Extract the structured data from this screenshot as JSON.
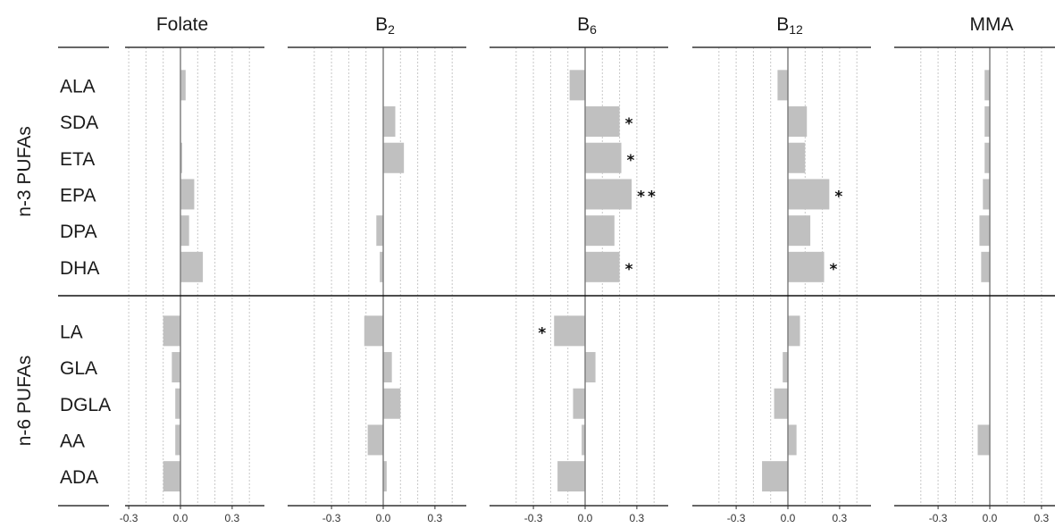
{
  "chart_data": {
    "type": "bar",
    "orientation": "horizontal",
    "grid": true,
    "bar_color": "#c0c0c0",
    "gridline_color": "#c8c8c8",
    "zero_line_color": "#808080",
    "xlim": [
      -0.42,
      0.42
    ],
    "ticks": [
      -0.3,
      0.0,
      0.3
    ],
    "tick_labels": [
      "-0.3",
      "0.0",
      "0.3"
    ],
    "groups": [
      {
        "label": "n-3 PUFAs",
        "rows": [
          "ALA",
          "SDA",
          "ETA",
          "EPA",
          "DPA",
          "DHA"
        ]
      },
      {
        "label": "n-6 PUFAs",
        "rows": [
          "LA",
          "GLA",
          "DGLA",
          "AA",
          "ADA"
        ]
      }
    ],
    "panels": [
      {
        "title_base": "Folate",
        "title_sub": "",
        "values": [
          0.03,
          0.0,
          0.01,
          0.08,
          0.05,
          0.13,
          -0.1,
          -0.05,
          -0.03,
          -0.03,
          -0.1
        ],
        "sig": [
          "",
          "",
          "",
          "",
          "",
          "",
          "",
          "",
          "",
          "",
          ""
        ]
      },
      {
        "title_base": "B",
        "title_sub": "2",
        "values": [
          0.0,
          0.07,
          0.12,
          0.0,
          -0.04,
          -0.02,
          -0.11,
          0.05,
          0.1,
          -0.09,
          0.02
        ],
        "sig": [
          "",
          "",
          "",
          "",
          "",
          "",
          "",
          "",
          "",
          "",
          ""
        ]
      },
      {
        "title_base": "B",
        "title_sub": "6",
        "values": [
          -0.09,
          0.2,
          0.21,
          0.27,
          0.17,
          0.2,
          -0.18,
          0.06,
          -0.07,
          -0.02,
          -0.16
        ],
        "sig": [
          "",
          "*",
          "*",
          "**",
          "",
          "*",
          "*",
          "",
          "",
          "",
          ""
        ]
      },
      {
        "title_base": "B",
        "title_sub": "12",
        "values": [
          -0.06,
          0.11,
          0.1,
          0.24,
          0.13,
          0.21,
          0.07,
          -0.03,
          -0.08,
          0.05,
          -0.15
        ],
        "sig": [
          "",
          "",
          "",
          "*",
          "",
          "*",
          "",
          "",
          "",
          "",
          ""
        ]
      },
      {
        "title_base": "MMA",
        "title_sub": "",
        "values": [
          -0.03,
          -0.03,
          -0.03,
          -0.04,
          -0.06,
          -0.05,
          0.0,
          0.0,
          0.0,
          -0.07,
          0.0
        ],
        "sig": [
          "",
          "",
          "",
          "",
          "",
          "",
          "",
          "",
          "",
          "",
          ""
        ]
      }
    ]
  }
}
